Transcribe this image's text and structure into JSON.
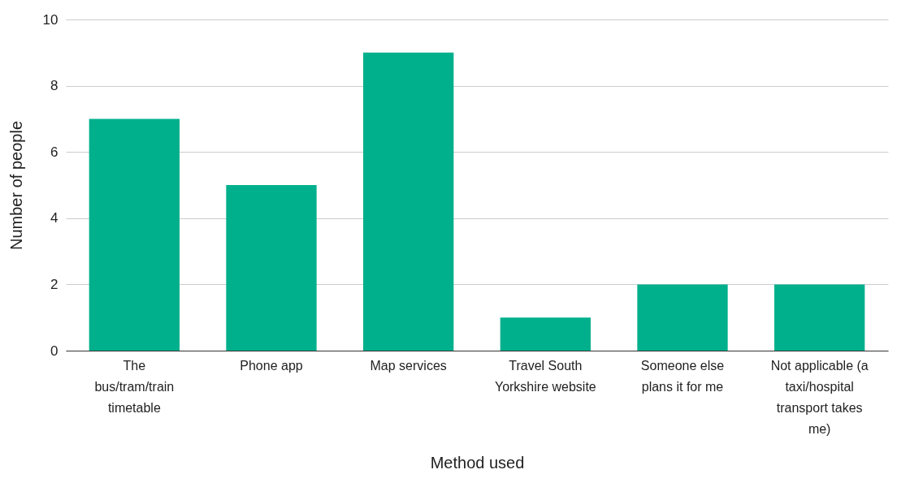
{
  "chart_data": {
    "type": "bar",
    "xlabel": "Method used",
    "ylabel": "Number of people",
    "categories": [
      "The bus/tram/train timetable",
      "Phone app",
      "Map services",
      "Travel South Yorkshire website",
      "Someone else plans it for me",
      "Not applicable (a taxi/hospital transport takes me)"
    ],
    "values": [
      7,
      5,
      9,
      1,
      2,
      2
    ],
    "color": "#00b08c",
    "ylim": [
      0,
      10
    ],
    "yticks": [
      0,
      2,
      4,
      6,
      8,
      10
    ],
    "grid": "y"
  }
}
